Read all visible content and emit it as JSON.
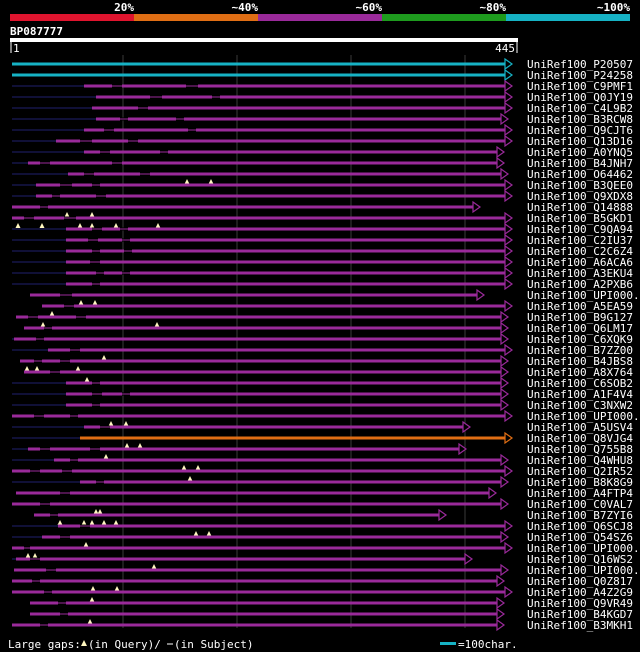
{
  "legend": {
    "identity_bands": [
      {
        "label": "20%",
        "color": "#e0142e"
      },
      {
        "label": "~40%",
        "color": "#e06e14"
      },
      {
        "label": "~60%",
        "color": "#9a2a9a"
      },
      {
        "label": "~80%",
        "color": "#1e9b1e"
      },
      {
        "label": "~100%",
        "color": "#16b2c4"
      }
    ]
  },
  "query": {
    "id": "BP087777",
    "start": "1",
    "end": "445"
  },
  "footer": {
    "gaps_label": "Large gaps:",
    "gap_query": "(in Query)/",
    "gap_subject": "(in Subject)",
    "scale_label": "=100char."
  },
  "hits": [
    {
      "id": "UniRef100_P20507",
      "color": "#16b2c4",
      "arrow": "right",
      "line_start": 12,
      "seg_start": 12,
      "seg_end": 512,
      "gaps": [],
      "marks": []
    },
    {
      "id": "UniRef100_P24258",
      "color": "#16b2c4",
      "arrow": "right",
      "line_start": 12,
      "seg_start": 12,
      "seg_end": 512,
      "gaps": [],
      "marks": []
    },
    {
      "id": "UniRef100_C9PMF1",
      "color": "#9a2a9a",
      "arrow": "right",
      "line_start": 12,
      "seg_start": 84,
      "seg_end": 512,
      "gaps": [
        [
          112,
          122
        ],
        [
          186,
          198
        ]
      ],
      "marks": []
    },
    {
      "id": "UniRef100_Q0JY19",
      "color": "#9a2a9a",
      "arrow": "right",
      "line_start": 12,
      "seg_start": 96,
      "seg_end": 512,
      "gaps": [
        [
          150,
          162
        ],
        [
          212,
          220
        ]
      ],
      "marks": []
    },
    {
      "id": "UniRef100_C4L9B2",
      "color": "#9a2a9a",
      "arrow": "right",
      "line_start": 12,
      "seg_start": 92,
      "seg_end": 512,
      "gaps": [
        [
          138,
          148
        ]
      ],
      "marks": []
    },
    {
      "id": "UniRef100_B3RCW8",
      "color": "#9a2a9a",
      "arrow": "right",
      "line_start": 12,
      "seg_start": 96,
      "seg_end": 508,
      "gaps": [
        [
          120,
          128
        ],
        [
          176,
          184
        ]
      ],
      "marks": []
    },
    {
      "id": "UniRef100_Q9CJT6",
      "color": "#9a2a9a",
      "arrow": "right",
      "line_start": 12,
      "seg_start": 84,
      "seg_end": 512,
      "gaps": [
        [
          104,
          114
        ],
        [
          188,
          196
        ]
      ],
      "marks": []
    },
    {
      "id": "UniRef100_Q13D16",
      "color": "#9a2a9a",
      "arrow": "right",
      "line_start": 12,
      "seg_start": 56,
      "seg_end": 512,
      "gaps": [
        [
          80,
          92
        ],
        [
          128,
          138
        ]
      ],
      "marks": []
    },
    {
      "id": "UniRef100_A0YNQ5",
      "color": "#9a2a9a",
      "arrow": "right",
      "line_start": 12,
      "seg_start": 84,
      "seg_end": 504,
      "gaps": [
        [
          100,
          110
        ],
        [
          160,
          168
        ]
      ],
      "marks": []
    },
    {
      "id": "UniRef100_B4JNH7",
      "color": "#9a2a9a",
      "arrow": "right",
      "line_start": 12,
      "seg_start": 28,
      "seg_end": 504,
      "gaps": [
        [
          40,
          50
        ],
        [
          112,
          122
        ]
      ],
      "marks": []
    },
    {
      "id": "UniRef100_O64462",
      "color": "#9a2a9a",
      "arrow": "right",
      "line_start": 12,
      "seg_start": 68,
      "seg_end": 508,
      "gaps": [
        [
          84,
          94
        ],
        [
          140,
          150
        ]
      ],
      "marks": [
        187,
        211
      ]
    },
    {
      "id": "UniRef100_B3QEE0",
      "color": "#9a2a9a",
      "arrow": "right",
      "line_start": 12,
      "seg_start": 36,
      "seg_end": 512,
      "gaps": [
        [
          60,
          72
        ],
        [
          92,
          100
        ]
      ],
      "marks": []
    },
    {
      "id": "UniRef100_Q9XDX8",
      "color": "#9a2a9a",
      "arrow": "right",
      "line_start": 12,
      "seg_start": 36,
      "seg_end": 512,
      "gaps": [
        [
          52,
          60
        ],
        [
          96,
          106
        ]
      ],
      "marks": []
    },
    {
      "id": "UniRef100_Q14888",
      "color": "#9a2a9a",
      "arrow": "right",
      "line_start": 12,
      "seg_start": 12,
      "seg_end": 480,
      "gaps": [
        [
          40,
          48
        ]
      ],
      "marks": [
        67,
        92
      ]
    },
    {
      "id": "UniRef100_B5GKD1",
      "color": "#9a2a9a",
      "arrow": "right",
      "line_start": 12,
      "seg_start": 12,
      "seg_end": 512,
      "gaps": [
        [
          24,
          34
        ],
        [
          64,
          76
        ]
      ],
      "marks": [
        18,
        42,
        80,
        92,
        116,
        158
      ]
    },
    {
      "id": "UniRef100_C9QA94",
      "color": "#9a2a9a",
      "arrow": "right",
      "line_start": 12,
      "seg_start": 66,
      "seg_end": 512,
      "gaps": [
        [
          92,
          102
        ],
        [
          120,
          128
        ]
      ],
      "marks": []
    },
    {
      "id": "UniRef100_C2IU37",
      "color": "#9a2a9a",
      "arrow": "right",
      "line_start": 12,
      "seg_start": 66,
      "seg_end": 512,
      "gaps": [
        [
          88,
          98
        ],
        [
          122,
          130
        ]
      ],
      "marks": []
    },
    {
      "id": "UniRef100_C2C6Z4",
      "color": "#9a2a9a",
      "arrow": "right",
      "line_start": 12,
      "seg_start": 66,
      "seg_end": 512,
      "gaps": [
        [
          92,
          100
        ],
        [
          124,
          132
        ]
      ],
      "marks": []
    },
    {
      "id": "UniRef100_A6ACA6",
      "color": "#9a2a9a",
      "arrow": "right",
      "line_start": 12,
      "seg_start": 66,
      "seg_end": 512,
      "gaps": [
        [
          90,
          100
        ]
      ],
      "marks": []
    },
    {
      "id": "UniRef100_A3EKU4",
      "color": "#9a2a9a",
      "arrow": "right",
      "line_start": 12,
      "seg_start": 66,
      "seg_end": 512,
      "gaps": [
        [
          96,
          104
        ],
        [
          122,
          130
        ]
      ],
      "marks": []
    },
    {
      "id": "UniRef100_A2PXB6",
      "color": "#9a2a9a",
      "arrow": "right",
      "line_start": 12,
      "seg_start": 66,
      "seg_end": 512,
      "gaps": [
        [
          92,
          100
        ]
      ],
      "marks": []
    },
    {
      "id": "UniRef100_UPI000...",
      "color": "#9a2a9a",
      "arrow": "right",
      "line_start": 30,
      "seg_start": 30,
      "seg_end": 484,
      "gaps": [
        [
          60,
          72
        ]
      ],
      "marks": [
        81,
        95
      ]
    },
    {
      "id": "UniRef100_A5EA59",
      "color": "#9a2a9a",
      "arrow": "right",
      "line_start": 42,
      "seg_start": 42,
      "seg_end": 512,
      "gaps": [
        [
          64,
          74
        ]
      ],
      "marks": [
        52
      ]
    },
    {
      "id": "UniRef100_B9G127",
      "color": "#9a2a9a",
      "arrow": "right",
      "line_start": 16,
      "seg_start": 16,
      "seg_end": 508,
      "gaps": [
        [
          28,
          38
        ],
        [
          76,
          86
        ]
      ],
      "marks": [
        43,
        157
      ]
    },
    {
      "id": "UniRef100_Q6LM17",
      "color": "#9a2a9a",
      "arrow": "right",
      "line_start": 24,
      "seg_start": 24,
      "seg_end": 508,
      "gaps": [
        [
          44,
          52
        ]
      ],
      "marks": []
    },
    {
      "id": "UniRef100_C6XQK9",
      "color": "#9a2a9a",
      "arrow": "right",
      "line_start": 12,
      "seg_start": 14,
      "seg_end": 508,
      "gaps": [
        [
          36,
          44
        ]
      ],
      "marks": []
    },
    {
      "id": "UniRef100_B7ZZ00",
      "color": "#9a2a9a",
      "arrow": "right",
      "line_start": 12,
      "seg_start": 48,
      "seg_end": 512,
      "gaps": [
        [
          70,
          80
        ]
      ],
      "marks": [
        104
      ]
    },
    {
      "id": "UniRef100_B4JBS8",
      "color": "#9a2a9a",
      "arrow": "right",
      "line_start": 20,
      "seg_start": 20,
      "seg_end": 508,
      "gaps": [
        [
          34,
          42
        ],
        [
          60,
          70
        ]
      ],
      "marks": [
        27,
        37,
        78
      ]
    },
    {
      "id": "UniRef100_A8X764",
      "color": "#9a2a9a",
      "arrow": "right",
      "line_start": 24,
      "seg_start": 24,
      "seg_end": 508,
      "gaps": [
        [
          50,
          60
        ]
      ],
      "marks": [
        87
      ]
    },
    {
      "id": "UniRef100_C6SOB2",
      "color": "#9a2a9a",
      "arrow": "right",
      "line_start": 12,
      "seg_start": 66,
      "seg_end": 508,
      "gaps": [
        [
          92,
          100
        ]
      ],
      "marks": []
    },
    {
      "id": "UniRef100_A1F4V4",
      "color": "#9a2a9a",
      "arrow": "right",
      "line_start": 12,
      "seg_start": 66,
      "seg_end": 508,
      "gaps": [
        [
          92,
          102
        ],
        [
          122,
          130
        ]
      ],
      "marks": []
    },
    {
      "id": "UniRef100_C3NXW2",
      "color": "#9a2a9a",
      "arrow": "right",
      "line_start": 12,
      "seg_start": 66,
      "seg_end": 508,
      "gaps": [
        [
          92,
          100
        ]
      ],
      "marks": []
    },
    {
      "id": "UniRef100_UPI000...",
      "color": "#9a2a9a",
      "arrow": "right",
      "line_start": 12,
      "seg_start": 12,
      "seg_end": 512,
      "gaps": [
        [
          34,
          44
        ],
        [
          70,
          78
        ]
      ],
      "marks": [
        111,
        126
      ]
    },
    {
      "id": "UniRef100_A5USV4",
      "color": "#9a2a9a",
      "arrow": "right",
      "line_start": 12,
      "seg_start": 84,
      "seg_end": 470,
      "gaps": [
        [
          100,
          110
        ]
      ],
      "marks": []
    },
    {
      "id": "UniRef100_Q8VJG4",
      "color": "#e06e14",
      "arrow": "right",
      "line_start": 12,
      "seg_start": 80,
      "seg_end": 512,
      "gaps": [],
      "marks": [
        127,
        140
      ]
    },
    {
      "id": "UniRef100_Q755B8",
      "color": "#9a2a9a",
      "arrow": "right",
      "line_start": 12,
      "seg_start": 28,
      "seg_end": 466,
      "gaps": [
        [
          40,
          50
        ],
        [
          90,
          100
        ]
      ],
      "marks": [
        106
      ]
    },
    {
      "id": "UniRef100_Q4WHU8",
      "color": "#9a2a9a",
      "arrow": "right",
      "line_start": 12,
      "seg_start": 54,
      "seg_end": 508,
      "gaps": [
        [
          70,
          78
        ]
      ],
      "marks": [
        184,
        198
      ]
    },
    {
      "id": "UniRef100_Q2IR52",
      "color": "#9a2a9a",
      "arrow": "right",
      "line_start": 12,
      "seg_start": 12,
      "seg_end": 512,
      "gaps": [
        [
          30,
          40
        ],
        [
          62,
          72
        ]
      ],
      "marks": [
        190
      ]
    },
    {
      "id": "UniRef100_B8K8G9",
      "color": "#9a2a9a",
      "arrow": "right",
      "line_start": 12,
      "seg_start": 80,
      "seg_end": 508,
      "gaps": [
        [
          96,
          104
        ]
      ],
      "marks": []
    },
    {
      "id": "UniRef100_A4FTP4",
      "color": "#9a2a9a",
      "arrow": "right",
      "line_start": 16,
      "seg_start": 16,
      "seg_end": 496,
      "gaps": [
        [
          60,
          70
        ]
      ],
      "marks": []
    },
    {
      "id": "UniRef100_C0VAL7",
      "color": "#9a2a9a",
      "arrow": "right",
      "line_start": 12,
      "seg_start": 12,
      "seg_end": 508,
      "gaps": [
        [
          40,
          50
        ]
      ],
      "marks": [
        96,
        100
      ]
    },
    {
      "id": "UniRef100_B7ZYI6",
      "color": "#9a2a9a",
      "arrow": "right",
      "line_start": 34,
      "seg_start": 34,
      "seg_end": 446,
      "gaps": [
        [
          50,
          58
        ]
      ],
      "marks": [
        60,
        84,
        92,
        104,
        116
      ]
    },
    {
      "id": "UniRef100_Q6SCJ8",
      "color": "#9a2a9a",
      "arrow": "right",
      "line_start": 12,
      "seg_start": 58,
      "seg_end": 512,
      "gaps": [
        [
          80,
          90
        ]
      ],
      "marks": [
        196,
        209
      ]
    },
    {
      "id": "UniRef100_Q54SZ6",
      "color": "#9a2a9a",
      "arrow": "right",
      "line_start": 12,
      "seg_start": 42,
      "seg_end": 508,
      "gaps": [
        [
          60,
          70
        ]
      ],
      "marks": [
        86
      ]
    },
    {
      "id": "UniRef100_UPI000...",
      "color": "#9a2a9a",
      "arrow": "right",
      "line_start": 12,
      "seg_start": 12,
      "seg_end": 512,
      "gaps": [
        [
          24,
          30
        ]
      ],
      "marks": [
        28,
        35
      ]
    },
    {
      "id": "UniRef100_Q16WS2",
      "color": "#9a2a9a",
      "arrow": "right",
      "line_start": 12,
      "seg_start": 16,
      "seg_end": 472,
      "gaps": [
        [
          30,
          40
        ]
      ],
      "marks": [
        154
      ]
    },
    {
      "id": "UniRef100_UPI000...",
      "color": "#9a2a9a",
      "arrow": "right",
      "line_start": 14,
      "seg_start": 14,
      "seg_end": 508,
      "gaps": [
        [
          46,
          56
        ]
      ],
      "marks": []
    },
    {
      "id": "UniRef100_Q0Z817",
      "color": "#9a2a9a",
      "arrow": "right",
      "line_start": 12,
      "seg_start": 12,
      "seg_end": 504,
      "gaps": [
        [
          32,
          40
        ]
      ],
      "marks": [
        93,
        117
      ]
    },
    {
      "id": "UniRef100_A4Z2G9",
      "color": "#9a2a9a",
      "arrow": "right",
      "line_start": 12,
      "seg_start": 12,
      "seg_end": 512,
      "gaps": [
        [
          44,
          52
        ]
      ],
      "marks": [
        92
      ]
    },
    {
      "id": "UniRef100_Q9VR49",
      "color": "#9a2a9a",
      "arrow": "right",
      "line_start": 30,
      "seg_start": 30,
      "seg_end": 504,
      "gaps": [
        [
          58,
          66
        ]
      ],
      "marks": []
    },
    {
      "id": "UniRef100_B4KGD7",
      "color": "#9a2a9a",
      "arrow": "right",
      "line_start": 30,
      "seg_start": 30,
      "seg_end": 504,
      "gaps": [
        [
          60,
          68
        ]
      ],
      "marks": [
        90
      ]
    },
    {
      "id": "UniRef100_B3MKH1",
      "color": "#9a2a9a",
      "arrow": "right",
      "line_start": 12,
      "seg_start": 12,
      "seg_end": 504,
      "gaps": [
        [
          40,
          48
        ]
      ],
      "marks": []
    }
  ]
}
